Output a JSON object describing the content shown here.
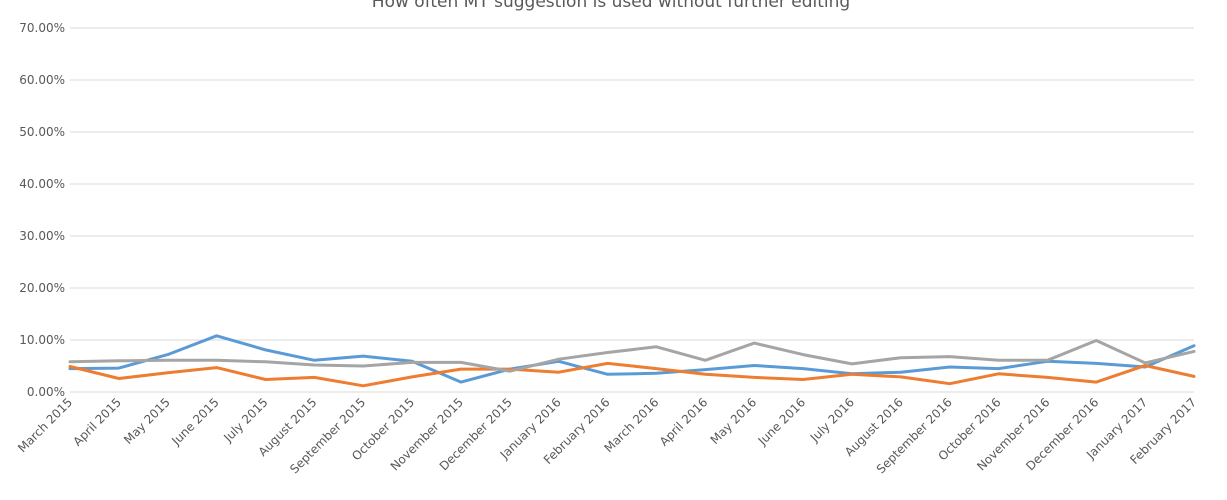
{
  "chart_data": {
    "type": "line",
    "title": "How often MT suggestion is used without further editing",
    "xlabel": "",
    "ylabel": "",
    "ylim": [
      0,
      0.7
    ],
    "y_ticks": [
      "0.00%",
      "10.00%",
      "20.00%",
      "30.00%",
      "40.00%",
      "50.00%",
      "60.00%",
      "70.00%"
    ],
    "grid": true,
    "legend": "none",
    "categories": [
      "March 2015",
      "April 2015",
      "May 2015",
      "June 2015",
      "July 2015",
      "August 2015",
      "September 2015",
      "October 2015",
      "November 2015",
      "December 2015",
      "January 2016",
      "February 2016",
      "March 2016",
      "April 2016",
      "May 2016",
      "June 2016",
      "July 2016",
      "August 2016",
      "September 2016",
      "October 2016",
      "November 2016",
      "December 2016",
      "January 2017",
      "February 2017"
    ],
    "series": [
      {
        "color": "#5b9bd5",
        "values": [
          0.045,
          0.046,
          0.072,
          0.108,
          0.081,
          0.061,
          0.069,
          0.059,
          0.019,
          0.044,
          0.059,
          0.034,
          0.036,
          0.043,
          0.051,
          0.045,
          0.035,
          0.038,
          0.048,
          0.045,
          0.059,
          0.055,
          0.048,
          0.089
        ]
      },
      {
        "color": "#ed7d31",
        "values": [
          0.049,
          0.026,
          0.037,
          0.047,
          0.024,
          0.028,
          0.012,
          0.029,
          0.044,
          0.044,
          0.038,
          0.055,
          0.045,
          0.034,
          0.028,
          0.024,
          0.034,
          0.029,
          0.016,
          0.035,
          0.028,
          0.019,
          0.051,
          0.03
        ]
      },
      {
        "color": "#a5a5a5",
        "values": [
          0.058,
          0.06,
          0.061,
          0.061,
          0.058,
          0.052,
          0.05,
          0.057,
          0.057,
          0.04,
          0.063,
          0.076,
          0.087,
          0.061,
          0.094,
          0.072,
          0.054,
          0.066,
          0.068,
          0.061,
          0.061,
          0.099,
          0.056,
          0.078
        ]
      }
    ]
  }
}
